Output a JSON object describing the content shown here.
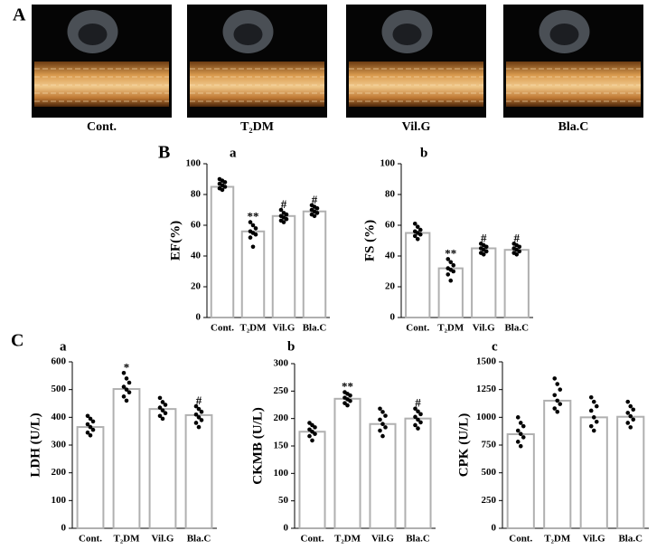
{
  "panel_labels": [
    "A",
    "B",
    "C"
  ],
  "images": [
    "Cont.",
    "T₂DM",
    "Vil.G",
    "Bla.C"
  ],
  "chart_data": [
    {
      "type": "bar",
      "label": "a",
      "ylabel": "EF(%)",
      "categories": [
        "Cont.",
        "T₂DM",
        "Vil.G",
        "Bla.C"
      ],
      "values": [
        85,
        56,
        66,
        69
      ],
      "markers": [
        null,
        "**",
        "#",
        "#"
      ],
      "points": [
        [
          90,
          89,
          88,
          87,
          86,
          85,
          84,
          83
        ],
        [
          62,
          60,
          58,
          56,
          55,
          54,
          52,
          46
        ],
        [
          70,
          68,
          67,
          66,
          65,
          64,
          63,
          62
        ],
        [
          73,
          72,
          71,
          70,
          69,
          68,
          67,
          66
        ]
      ],
      "ylim": [
        0,
        100
      ],
      "yticks": [
        0,
        20,
        40,
        60,
        80,
        100
      ]
    },
    {
      "type": "bar",
      "label": "b",
      "ylabel": "FS (%)",
      "categories": [
        "Cont.",
        "T₂DM",
        "Vil.G",
        "Bla.C"
      ],
      "values": [
        55,
        32,
        45,
        44
      ],
      "markers": [
        null,
        "**",
        "#",
        "#"
      ],
      "points": [
        [
          61,
          59,
          57,
          56,
          55,
          54,
          53,
          51
        ],
        [
          38,
          36,
          34,
          32,
          31,
          30,
          28,
          24
        ],
        [
          48,
          47,
          46,
          45,
          44,
          43,
          42,
          41
        ],
        [
          48,
          47,
          46,
          45,
          44,
          43,
          42,
          41
        ]
      ],
      "ylim": [
        0,
        100
      ],
      "yticks": [
        0,
        20,
        40,
        60,
        80,
        100
      ]
    },
    {
      "type": "bar",
      "label": "a",
      "ylabel": "LDH (U/L)",
      "categories": [
        "Cont.",
        "T₂DM",
        "Vil.G",
        "Bla.C"
      ],
      "values": [
        365,
        502,
        430,
        408
      ],
      "markers": [
        null,
        "*",
        null,
        "#"
      ],
      "points": [
        [
          405,
          395,
          385,
          375,
          365,
          355,
          345,
          335
        ],
        [
          560,
          540,
          525,
          510,
          500,
          490,
          475,
          460
        ],
        [
          470,
          455,
          445,
          435,
          425,
          415,
          405,
          395
        ],
        [
          440,
          430,
          420,
          410,
          400,
          390,
          380,
          365
        ]
      ],
      "ylim": [
        0,
        600
      ],
      "yticks": [
        0,
        100,
        200,
        300,
        400,
        500,
        600
      ]
    },
    {
      "type": "bar",
      "label": "b",
      "ylabel": "CKMB (U/L)",
      "categories": [
        "Cont.",
        "T₂DM",
        "Vil.G",
        "Bla.C"
      ],
      "values": [
        176,
        236,
        190,
        200
      ],
      "markers": [
        null,
        "**",
        null,
        "#"
      ],
      "points": [
        [
          192,
          188,
          184,
          180,
          176,
          172,
          168,
          160
        ],
        [
          248,
          245,
          242,
          238,
          235,
          232,
          228,
          224
        ],
        [
          218,
          212,
          205,
          198,
          190,
          184,
          178,
          168
        ],
        [
          218,
          213,
          208,
          203,
          198,
          193,
          188,
          182
        ]
      ],
      "ylim": [
        0,
        300
      ],
      "yticks": [
        0,
        50,
        100,
        150,
        200,
        250,
        300
      ]
    },
    {
      "type": "bar",
      "label": "c",
      "ylabel": "CPK (U/L)",
      "categories": [
        "Cont.",
        "T₂DM",
        "Vil.G",
        "Bla.C"
      ],
      "values": [
        848,
        1150,
        1000,
        1005
      ],
      "markers": null,
      "points": [
        [
          1000,
          950,
          920,
          880,
          850,
          820,
          780,
          740
        ],
        [
          1350,
          1300,
          1250,
          1200,
          1150,
          1120,
          1080,
          1050
        ],
        [
          1180,
          1140,
          1100,
          1060,
          1000,
          960,
          920,
          880
        ],
        [
          1140,
          1100,
          1070,
          1040,
          1010,
          980,
          950,
          910
        ]
      ],
      "ylim": [
        0,
        1500
      ],
      "yticks": [
        0,
        250,
        500,
        750,
        1000,
        1250,
        1500
      ]
    }
  ]
}
